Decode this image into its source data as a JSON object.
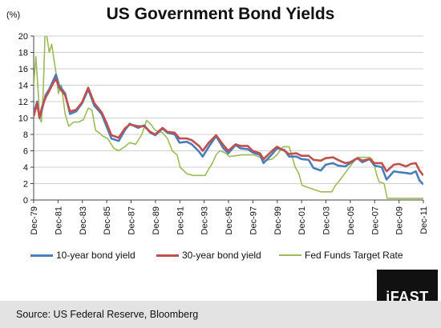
{
  "chart_data": {
    "type": "line",
    "title": "US Government Bond Yields",
    "ylabel": "(%)",
    "ylim": [
      0,
      20
    ],
    "yticks": [
      0,
      2,
      4,
      6,
      8,
      10,
      12,
      14,
      16,
      18,
      20
    ],
    "xlim": [
      1979.92,
      2011.92
    ],
    "xticks": [
      "Dec-79",
      "Dec-81",
      "Dec-83",
      "Dec-85",
      "Dec-87",
      "Dec-89",
      "Dec-91",
      "Dec-93",
      "Dec-95",
      "Dec-97",
      "Dec-99",
      "Dec-01",
      "Dec-03",
      "Dec-05",
      "Dec-07",
      "Dec-09",
      "Dec-11"
    ],
    "grid": "horizontal",
    "legend_position": "bottom",
    "series": [
      {
        "name": "10-year bond yield",
        "color": "#4a7ebb",
        "x": [
          1979.92,
          1980.2,
          1980.4,
          1980.6,
          1980.9,
          1981.2,
          1981.5,
          1981.75,
          1982.0,
          1982.5,
          1982.9,
          1983.4,
          1983.9,
          1984.4,
          1984.9,
          1985.5,
          1985.9,
          1986.3,
          1986.9,
          1987.4,
          1987.8,
          1988.5,
          1989.0,
          1989.5,
          1989.9,
          1990.5,
          1990.9,
          1991.5,
          1991.9,
          1992.5,
          1992.9,
          1993.5,
          1993.8,
          1994.3,
          1994.9,
          1995.5,
          1995.9,
          1996.5,
          1996.9,
          1997.5,
          1997.9,
          1998.5,
          1998.8,
          1999.5,
          1999.9,
          2000.5,
          2000.9,
          2001.5,
          2001.9,
          2002.5,
          2002.9,
          2003.5,
          2003.9,
          2004.5,
          2004.9,
          2005.5,
          2005.9,
          2006.5,
          2006.9,
          2007.5,
          2007.9,
          2008.5,
          2008.9,
          2009.5,
          2009.9,
          2010.5,
          2010.9,
          2011.3,
          2011.6,
          2011.92
        ],
        "y": [
          10.5,
          12.0,
          10.0,
          11.0,
          12.8,
          13.5,
          14.5,
          15.3,
          14.0,
          13.0,
          10.5,
          10.8,
          11.8,
          13.5,
          11.5,
          10.5,
          9.0,
          7.5,
          7.2,
          8.5,
          9.3,
          8.8,
          9.1,
          8.2,
          7.9,
          8.7,
          8.2,
          8.0,
          7.0,
          7.1,
          6.8,
          5.9,
          5.3,
          6.5,
          7.8,
          6.3,
          5.7,
          6.7,
          6.3,
          6.2,
          5.8,
          5.5,
          4.5,
          5.6,
          6.3,
          6.1,
          5.3,
          5.3,
          5.0,
          4.9,
          3.9,
          3.6,
          4.3,
          4.5,
          4.2,
          4.1,
          4.5,
          5.1,
          4.6,
          5.0,
          4.2,
          4.0,
          2.5,
          3.5,
          3.4,
          3.3,
          3.2,
          3.5,
          2.4,
          1.9
        ]
      },
      {
        "name": "30-year bond yield",
        "color": "#c0504d",
        "x": [
          1979.92,
          1980.2,
          1980.4,
          1980.6,
          1980.9,
          1981.2,
          1981.5,
          1981.75,
          1982.0,
          1982.5,
          1982.9,
          1983.4,
          1983.9,
          1984.4,
          1984.9,
          1985.5,
          1985.9,
          1986.3,
          1986.9,
          1987.4,
          1987.8,
          1988.5,
          1989.0,
          1989.5,
          1989.9,
          1990.5,
          1990.9,
          1991.5,
          1991.9,
          1992.5,
          1992.9,
          1993.5,
          1993.8,
          1994.3,
          1994.9,
          1995.5,
          1995.9,
          1996.5,
          1996.9,
          1997.5,
          1997.9,
          1998.5,
          1998.8,
          1999.5,
          1999.9,
          2000.5,
          2000.9,
          2001.5,
          2001.9,
          2002.5,
          2002.9,
          2003.5,
          2003.9,
          2004.5,
          2004.9,
          2005.5,
          2005.9,
          2006.5,
          2006.9,
          2007.5,
          2007.9,
          2008.5,
          2008.9,
          2009.5,
          2009.9,
          2010.5,
          2010.9,
          2011.3,
          2011.6,
          2011.92
        ],
        "y": [
          10.2,
          11.8,
          10.0,
          11.3,
          12.5,
          13.3,
          14.2,
          14.8,
          13.7,
          12.8,
          10.8,
          11.0,
          11.9,
          13.7,
          11.8,
          10.7,
          9.4,
          7.9,
          7.6,
          8.7,
          9.2,
          9.0,
          9.0,
          8.3,
          8.0,
          8.8,
          8.3,
          8.2,
          7.5,
          7.5,
          7.3,
          6.6,
          6.0,
          7.0,
          7.9,
          6.7,
          6.0,
          6.8,
          6.6,
          6.6,
          6.0,
          5.7,
          5.0,
          6.0,
          6.5,
          6.0,
          5.6,
          5.7,
          5.4,
          5.4,
          4.9,
          4.8,
          5.1,
          5.2,
          4.9,
          4.5,
          4.6,
          5.1,
          4.8,
          5.0,
          4.5,
          4.5,
          3.5,
          4.3,
          4.4,
          4.1,
          4.4,
          4.5,
          3.6,
          3.0
        ]
      },
      {
        "name": "Fed Funds Target Rate",
        "color": "#9bbb59",
        "x": [
          1979.92,
          1980.1,
          1980.3,
          1980.4,
          1980.55,
          1980.7,
          1980.85,
          1981.0,
          1981.2,
          1981.4,
          1981.6,
          1981.8,
          1981.95,
          1982.2,
          1982.5,
          1982.8,
          1983.2,
          1983.6,
          1984.0,
          1984.4,
          1984.7,
          1985.0,
          1985.3,
          1985.6,
          1986.0,
          1986.5,
          1986.9,
          1987.4,
          1987.8,
          1988.3,
          1988.8,
          1989.2,
          1989.5,
          1989.9,
          1990.5,
          1990.9,
          1991.3,
          1991.7,
          1991.95,
          1992.5,
          1993.0,
          1993.5,
          1994.0,
          1994.3,
          1994.6,
          1994.9,
          1995.2,
          1995.6,
          1996.0,
          1997.0,
          1998.0,
          1998.7,
          1998.9,
          1999.5,
          1999.9,
          2000.4,
          2000.9,
          2001.1,
          2001.4,
          2001.7,
          2001.95,
          2002.9,
          2003.5,
          2004.4,
          2004.7,
          2005.0,
          2005.5,
          2006.0,
          2006.5,
          2007.5,
          2007.7,
          2007.9,
          2008.1,
          2008.3,
          2008.7,
          2008.95,
          2009.5,
          2011.92
        ],
        "y": [
          14.0,
          17.5,
          13.0,
          10.0,
          9.5,
          13.0,
          20.0,
          20.0,
          18.0,
          19.0,
          17.0,
          15.0,
          13.0,
          14.0,
          10.5,
          9.0,
          9.5,
          9.5,
          9.8,
          11.2,
          11.0,
          8.5,
          8.2,
          7.8,
          7.5,
          6.3,
          6.0,
          6.5,
          7.0,
          6.8,
          8.0,
          9.7,
          9.3,
          8.5,
          8.2,
          7.5,
          6.0,
          5.5,
          4.0,
          3.2,
          3.0,
          3.0,
          3.0,
          3.8,
          4.5,
          5.5,
          6.0,
          5.8,
          5.3,
          5.5,
          5.5,
          5.1,
          4.8,
          5.0,
          5.5,
          6.5,
          6.5,
          5.5,
          4.0,
          3.2,
          1.8,
          1.3,
          1.0,
          1.0,
          1.8,
          2.3,
          3.3,
          4.3,
          5.2,
          5.2,
          5.0,
          4.3,
          3.0,
          2.2,
          2.0,
          0.2,
          0.2,
          0.2
        ]
      }
    ]
  },
  "source": "Source: US Federal Reserve, Bloomberg",
  "logo": "iFAST"
}
